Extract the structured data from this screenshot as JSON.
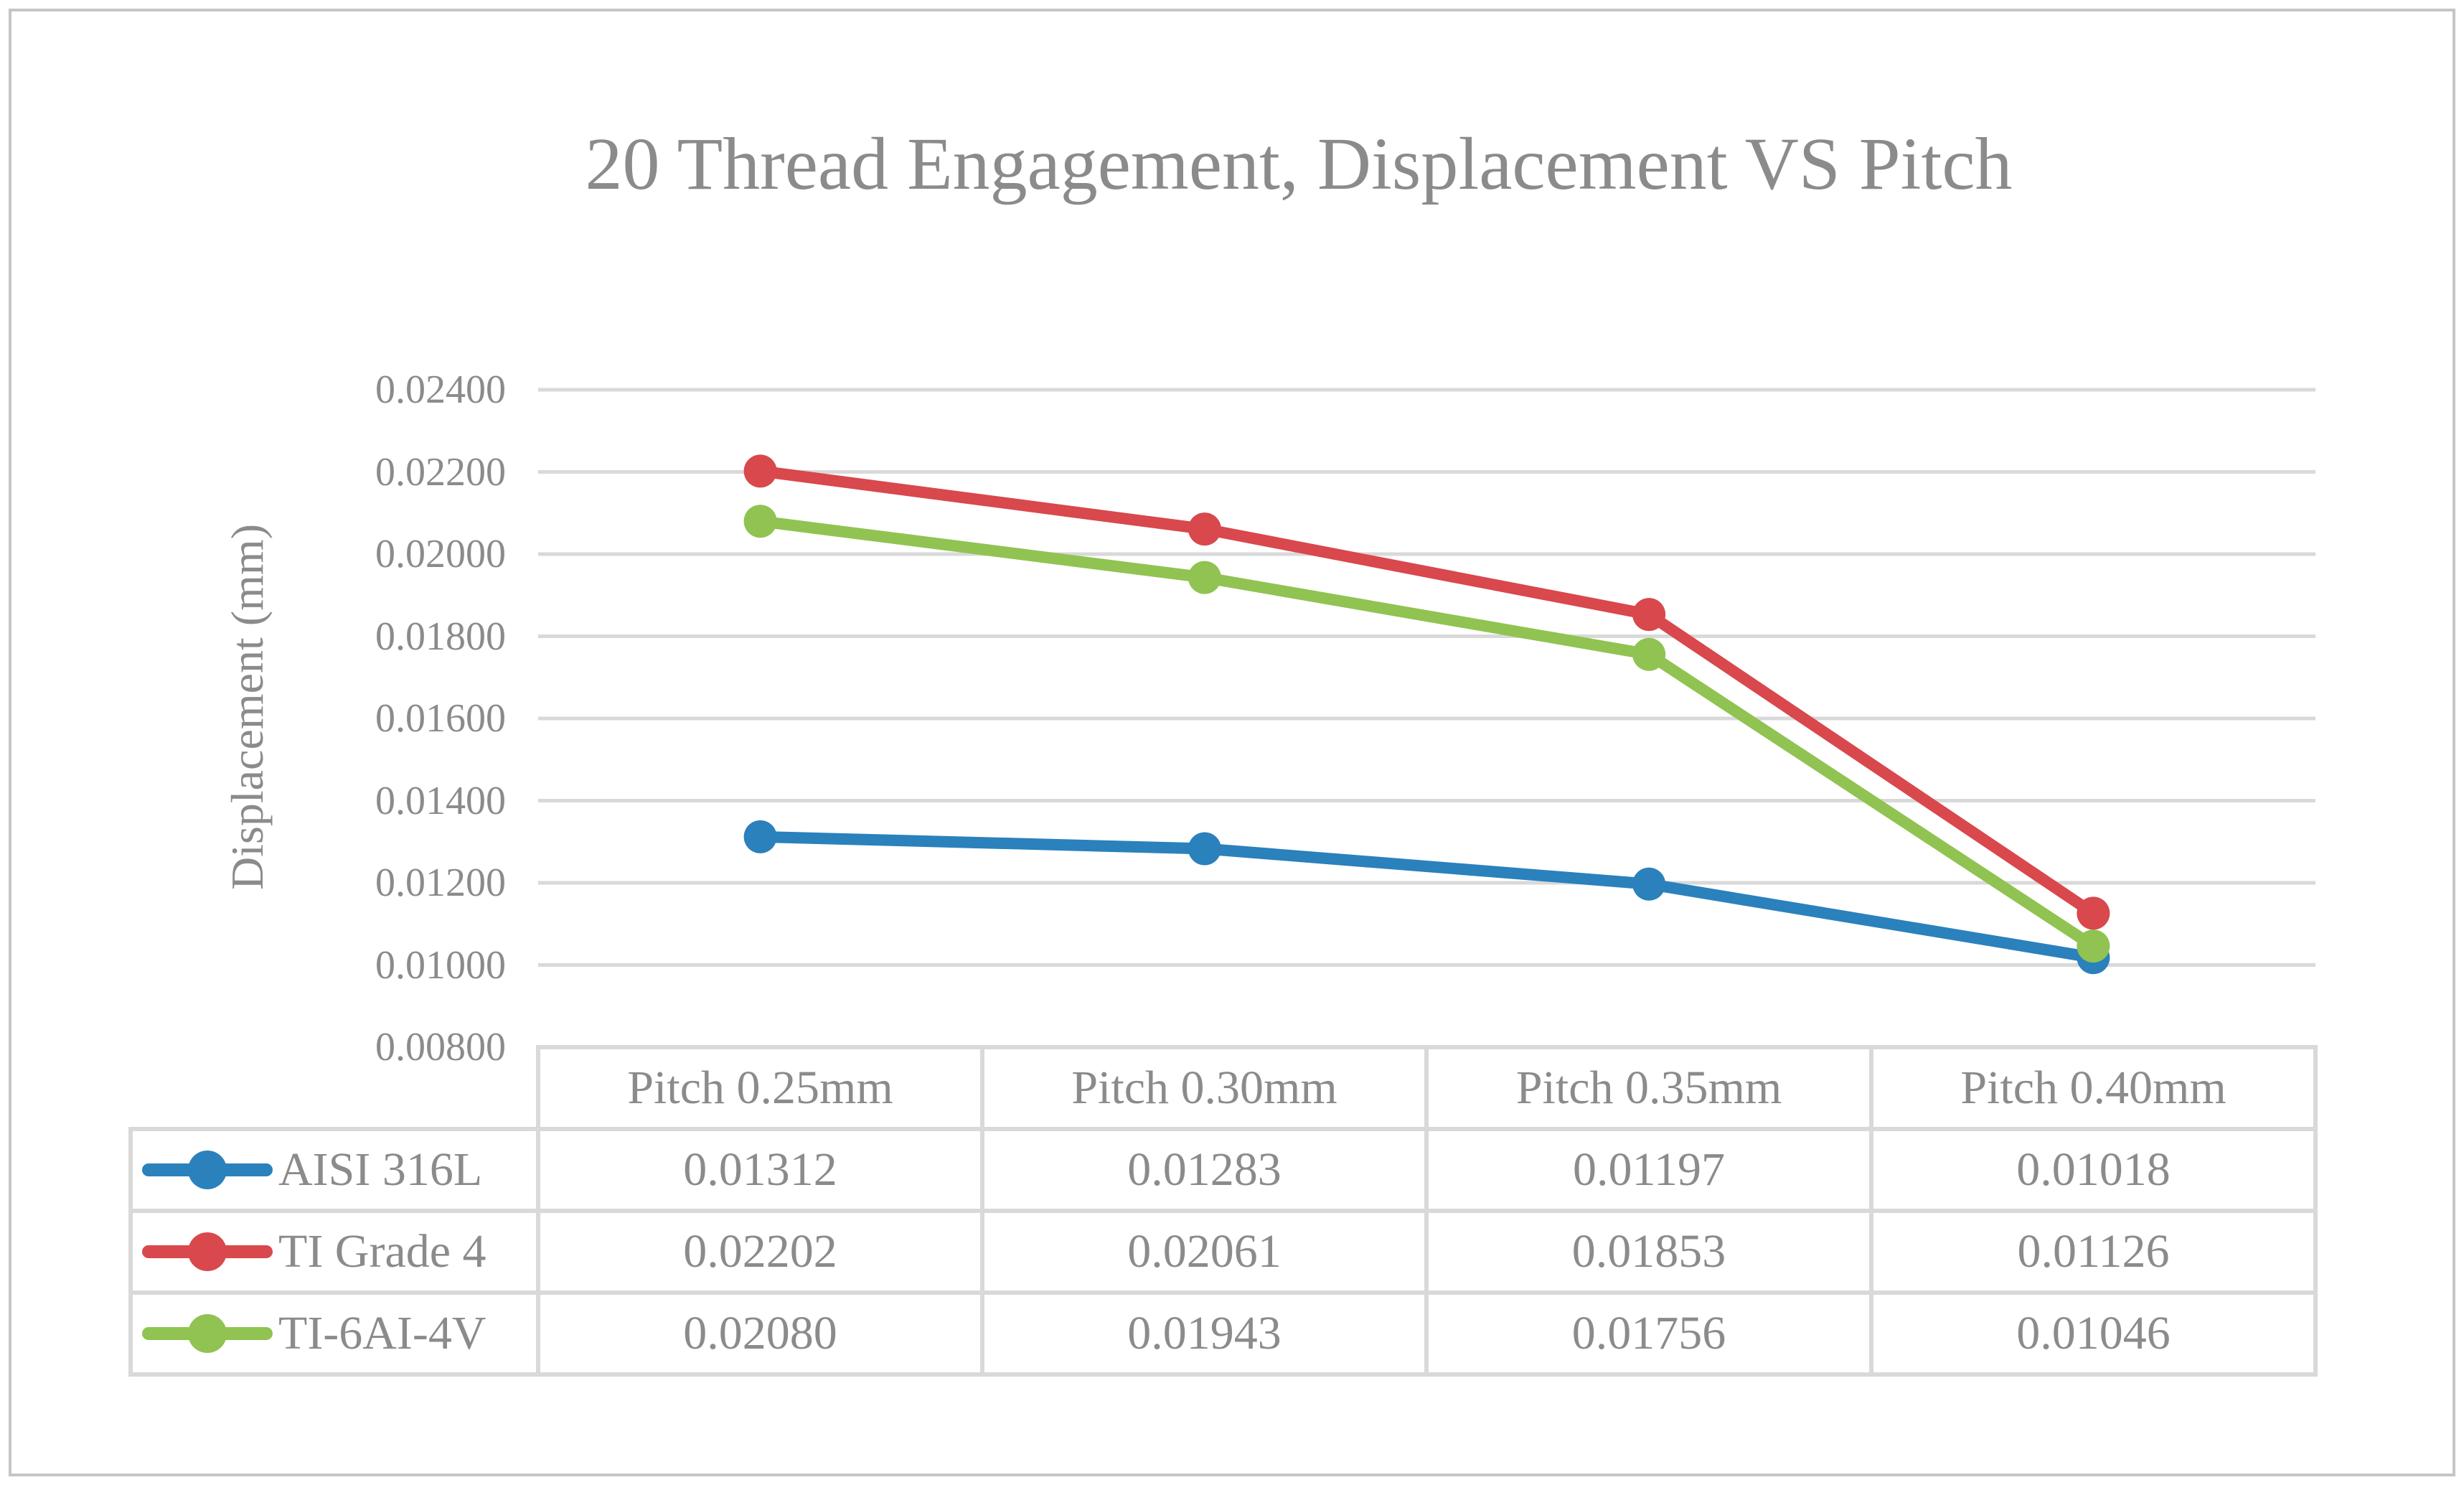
{
  "chart_title": "20 Thread Engagement, Displacement VS Pitch",
  "y_axis": {
    "title": "Displacement (mm)",
    "tick_labels": [
      "0.02400",
      "0.02200",
      "0.02000",
      "0.01800",
      "0.01600",
      "0.01400",
      "0.01200",
      "0.01000",
      "0.00800"
    ]
  },
  "colors": {
    "series_blue": "#2a81bc",
    "series_red": "#d8484c",
    "series_green": "#90c351",
    "gridline": "#d9d9d9",
    "text_gray": "#8b8b8b"
  },
  "chart_data": {
    "type": "line",
    "title": "20 Thread Engagement, Displacement VS Pitch",
    "xlabel": "",
    "ylabel": "Displacement (mm)",
    "categories": [
      "Pitch 0.25mm",
      "Pitch 0.30mm",
      "Pitch 0.35mm",
      "Pitch 0.40mm"
    ],
    "series": [
      {
        "name": "AISI 316L",
        "color": "#2a81bc",
        "values": [
          0.01312,
          0.01283,
          0.01197,
          0.01018
        ]
      },
      {
        "name": "TI Grade 4",
        "color": "#d8484c",
        "values": [
          0.02202,
          0.02061,
          0.01853,
          0.01126
        ]
      },
      {
        "name": "TI-6AI-4V",
        "color": "#90c351",
        "values": [
          0.0208,
          0.01943,
          0.01756,
          0.01046
        ]
      }
    ],
    "ylim": [
      0.008,
      0.024
    ],
    "ytick_step": 0.002,
    "grid": true,
    "marker": "circle",
    "legend_position": "table-left"
  },
  "table": {
    "headers": [
      "Pitch 0.25mm",
      "Pitch 0.30mm",
      "Pitch 0.35mm",
      "Pitch 0.40mm"
    ],
    "rows": [
      {
        "label": "AISI 316L",
        "values": [
          "0.01312",
          "0.01283",
          "0.01197",
          "0.01018"
        ]
      },
      {
        "label": "TI Grade 4",
        "values": [
          "0.02202",
          "0.02061",
          "0.01853",
          "0.01126"
        ]
      },
      {
        "label": "TI-6AI-4V",
        "values": [
          "0.02080",
          "0.01943",
          "0.01756",
          "0.01046"
        ]
      }
    ]
  }
}
